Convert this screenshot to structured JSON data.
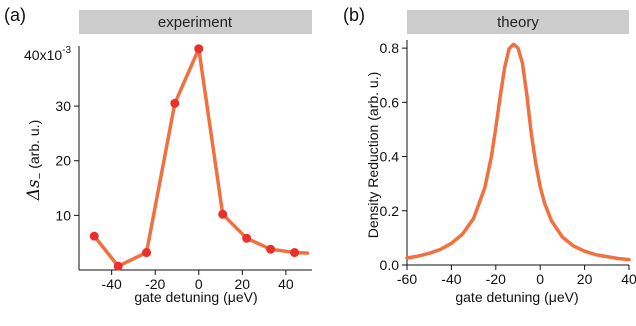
{
  "panels": [
    {
      "letter": "(a)",
      "banner": "experiment"
    },
    {
      "letter": "(b)",
      "banner": "theory"
    }
  ],
  "colors": {
    "line": "#f07040",
    "marker": "#e8312a",
    "banner": "#cccccc",
    "axis": "#111111"
  },
  "chart_data": [
    {
      "type": "line",
      "title": "experiment",
      "xlabel": "gate detuning (μeV)",
      "ylabel_symbol": "Δs",
      "ylabel_sub": "−",
      "ylabel_rest": "(arb. u.)",
      "y_exponent_label": "40x10",
      "y_exponent_sup": "-3",
      "xlim": [
        -55,
        52
      ],
      "ylim": [
        0,
        41
      ],
      "xticks": [
        -40,
        -20,
        0,
        20,
        40
      ],
      "xticklabels": [
        "-40",
        "-20",
        "0",
        "20",
        "40"
      ],
      "yticks": [
        10,
        20,
        30
      ],
      "yticklabels": [
        "10",
        "20",
        "30"
      ],
      "x": [
        -48,
        -37,
        -24,
        -11,
        0,
        11,
        22,
        33,
        44,
        50
      ],
      "y": [
        6.2,
        0.7,
        3.2,
        30.5,
        40.5,
        10.2,
        5.8,
        3.8,
        3.2,
        3.1
      ],
      "markers": [
        true,
        true,
        true,
        true,
        true,
        true,
        true,
        true,
        true,
        false
      ]
    },
    {
      "type": "line",
      "title": "theory",
      "xlabel": "gate detuning (μeV)",
      "ylabel": "Density Reduction (arb. u.)",
      "xlim": [
        -60,
        40
      ],
      "ylim": [
        0,
        0.83
      ],
      "xticks": [
        -60,
        -40,
        -20,
        0,
        20,
        40
      ],
      "xticklabels": [
        "-60",
        "-40",
        "-20",
        "0",
        "20",
        "40"
      ],
      "yticks": [
        0.0,
        0.2,
        0.4,
        0.6,
        0.8
      ],
      "yticklabels": [
        "0.0",
        "0.2",
        "0.4",
        "0.6",
        "0.8"
      ],
      "x": [
        -60,
        -55,
        -50,
        -45,
        -40,
        -35,
        -30,
        -25,
        -22,
        -20,
        -18,
        -16,
        -14,
        -12,
        -10,
        -8,
        -6,
        -4,
        -2,
        0,
        2,
        5,
        10,
        15,
        20,
        25,
        30,
        35,
        40
      ],
      "y": [
        0.026,
        0.033,
        0.043,
        0.057,
        0.08,
        0.114,
        0.172,
        0.284,
        0.4,
        0.507,
        0.622,
        0.729,
        0.798,
        0.814,
        0.8,
        0.745,
        0.626,
        0.484,
        0.374,
        0.288,
        0.228,
        0.164,
        0.103,
        0.07,
        0.051,
        0.038,
        0.031,
        0.024,
        0.02
      ]
    }
  ]
}
